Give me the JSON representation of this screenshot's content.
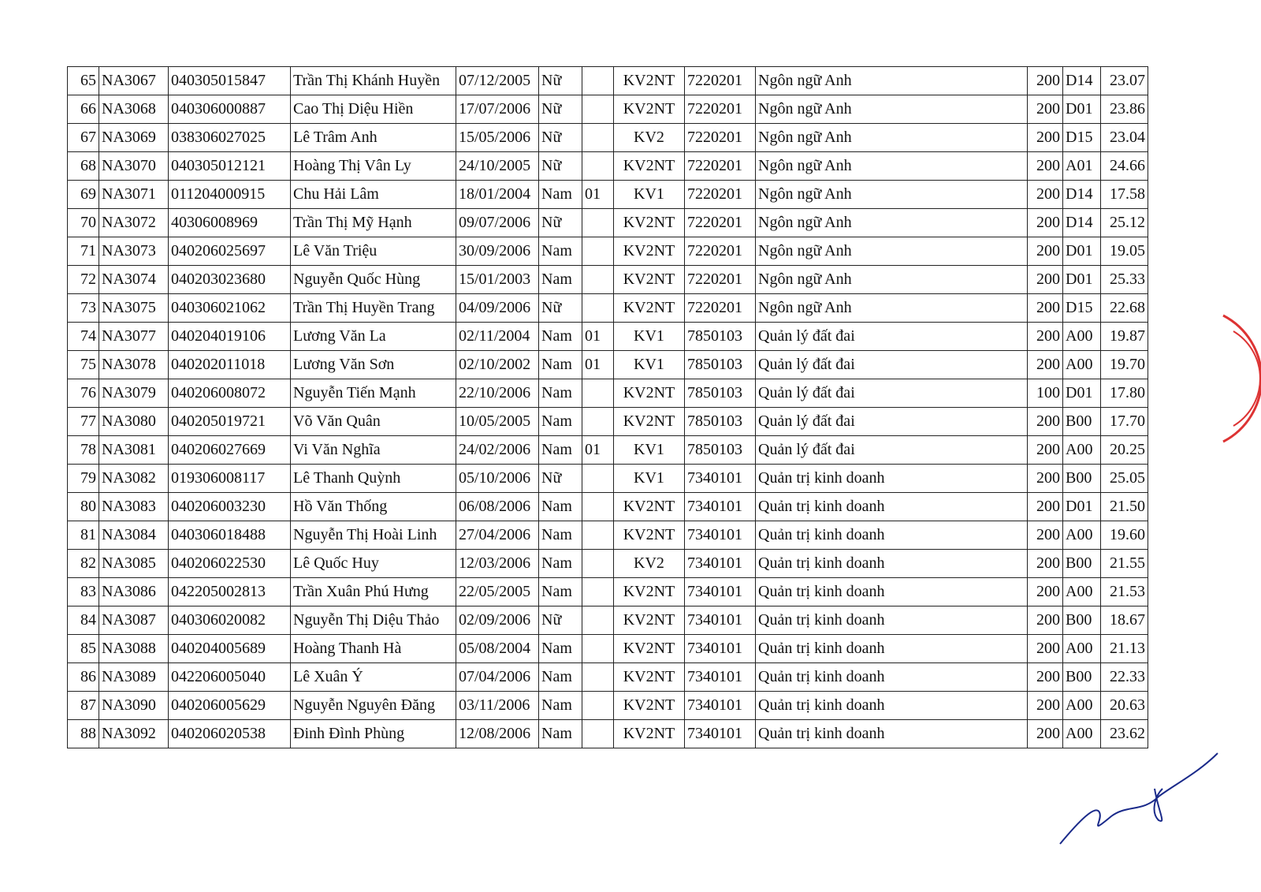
{
  "table": {
    "rows": [
      [
        "65",
        "NA3067",
        "040305015847",
        "Trần Thị Khánh Huyền",
        "07/12/2005",
        "Nữ",
        null,
        "KV2NT",
        "7220201",
        "Ngôn ngữ Anh",
        "200",
        "D14",
        "23.07"
      ],
      [
        "66",
        "NA3068",
        "040306000887",
        "Cao Thị Diệu Hiền",
        "17/07/2006",
        "Nữ",
        null,
        "KV2NT",
        "7220201",
        "Ngôn ngữ Anh",
        "200",
        "D01",
        "23.86"
      ],
      [
        "67",
        "NA3069",
        "038306027025",
        "Lê Trâm Anh",
        "15/05/2006",
        "Nữ",
        null,
        "KV2",
        "7220201",
        "Ngôn ngữ Anh",
        "200",
        "D15",
        "23.04"
      ],
      [
        "68",
        "NA3070",
        "040305012121",
        "Hoàng Thị Vân Ly",
        "24/10/2005",
        "Nữ",
        null,
        "KV2NT",
        "7220201",
        "Ngôn ngữ Anh",
        "200",
        "A01",
        "24.66"
      ],
      [
        "69",
        "NA3071",
        "011204000915",
        "Chu Hải Lâm",
        "18/01/2004",
        "Nam",
        "01",
        "KV1",
        "7220201",
        "Ngôn ngữ Anh",
        "200",
        "D14",
        "17.58"
      ],
      [
        "70",
        "NA3072",
        "40306008969",
        "Trần Thị Mỹ Hạnh",
        "09/07/2006",
        "Nữ",
        null,
        "KV2NT",
        "7220201",
        "Ngôn ngữ Anh",
        "200",
        "D14",
        "25.12"
      ],
      [
        "71",
        "NA3073",
        "040206025697",
        "Lê Văn Triệu",
        "30/09/2006",
        "Nam",
        null,
        "KV2NT",
        "7220201",
        "Ngôn ngữ Anh",
        "200",
        "D01",
        "19.05"
      ],
      [
        "72",
        "NA3074",
        "040203023680",
        "Nguyễn Quốc Hùng",
        "15/01/2003",
        "Nam",
        null,
        "KV2NT",
        "7220201",
        "Ngôn ngữ Anh",
        "200",
        "D01",
        "25.33"
      ],
      [
        "73",
        "NA3075",
        "040306021062",
        "Trần Thị Huyền Trang",
        "04/09/2006",
        "Nữ",
        null,
        "KV2NT",
        "7220201",
        "Ngôn ngữ Anh",
        "200",
        "D15",
        "22.68"
      ],
      [
        "74",
        "NA3077",
        "040204019106",
        "Lương Văn La",
        "02/11/2004",
        "Nam",
        "01",
        "KV1",
        "7850103",
        "Quản lý đất đai",
        "200",
        "A00",
        "19.87"
      ],
      [
        "75",
        "NA3078",
        "040202011018",
        "Lương Văn Sơn",
        "02/10/2002",
        "Nam",
        "01",
        "KV1",
        "7850103",
        "Quản lý đất đai",
        "200",
        "A00",
        "19.70"
      ],
      [
        "76",
        "NA3079",
        "040206008072",
        "Nguyễn Tiến Mạnh",
        "22/10/2006",
        "Nam",
        null,
        "KV2NT",
        "7850103",
        "Quản lý đất đai",
        "100",
        "D01",
        "17.80"
      ],
      [
        "77",
        "NA3080",
        "040205019721",
        "Võ Văn Quân",
        "10/05/2005",
        "Nam",
        null,
        "KV2NT",
        "7850103",
        "Quản lý đất đai",
        "200",
        "B00",
        "17.70"
      ],
      [
        "78",
        "NA3081",
        "040206027669",
        "Vi Văn Nghĩa",
        "24/02/2006",
        "Nam",
        "01",
        "KV1",
        "7850103",
        "Quản lý đất đai",
        "200",
        "A00",
        "20.25"
      ],
      [
        "79",
        "NA3082",
        "019306008117",
        "Lê Thanh Quỳnh",
        "05/10/2006",
        "Nữ",
        null,
        "KV1",
        "7340101",
        "Quản trị kinh doanh",
        "200",
        "B00",
        "25.05"
      ],
      [
        "80",
        "NA3083",
        "040206003230",
        "Hồ Văn Thống",
        "06/08/2006",
        "Nam",
        null,
        "KV2NT",
        "7340101",
        "Quản trị kinh doanh",
        "200",
        "D01",
        "21.50"
      ],
      [
        "81",
        "NA3084",
        "040306018488",
        "Nguyễn Thị Hoài Linh",
        "27/04/2006",
        "Nam",
        null,
        "KV2NT",
        "7340101",
        "Quản trị kinh doanh",
        "200",
        "A00",
        "19.60"
      ],
      [
        "82",
        "NA3085",
        "040206022530",
        "Lê Quốc Huy",
        "12/03/2006",
        "Nam",
        null,
        "KV2",
        "7340101",
        "Quản trị kinh doanh",
        "200",
        "B00",
        "21.55"
      ],
      [
        "83",
        "NA3086",
        "042205002813",
        "Trần Xuân Phú Hưng",
        "22/05/2005",
        "Nam",
        null,
        "KV2NT",
        "7340101",
        "Quản trị kinh doanh",
        "200",
        "A00",
        "21.53"
      ],
      [
        "84",
        "NA3087",
        "040306020082",
        "Nguyễn Thị Diệu Thảo",
        "02/09/2006",
        "Nữ",
        null,
        "KV2NT",
        "7340101",
        "Quản trị kinh doanh",
        "200",
        "B00",
        "18.67"
      ],
      [
        "85",
        "NA3088",
        "040204005689",
        "Hoàng Thanh Hà",
        "05/08/2004",
        "Nam",
        null,
        "KV2NT",
        "7340101",
        "Quản trị kinh doanh",
        "200",
        "A00",
        "21.13"
      ],
      [
        "86",
        "NA3089",
        "042206005040",
        "Lê Xuân Ý",
        "07/04/2006",
        "Nam",
        null,
        "KV2NT",
        "7340101",
        "Quản trị kinh doanh",
        "200",
        "B00",
        "22.33"
      ],
      [
        "87",
        "NA3090",
        "040206005629",
        "Nguyễn Nguyên Đăng",
        "03/11/2006",
        "Nam",
        null,
        "KV2NT",
        "7340101",
        "Quản trị kinh doanh",
        "200",
        "A00",
        "20.63"
      ],
      [
        "88",
        "NA3092",
        "040206020538",
        "Đinh Đình Phùng",
        "12/08/2006",
        "Nam",
        null,
        "KV2NT",
        "7340101",
        "Quản trị kinh doanh",
        "200",
        "A00",
        "23.62"
      ]
    ]
  }
}
